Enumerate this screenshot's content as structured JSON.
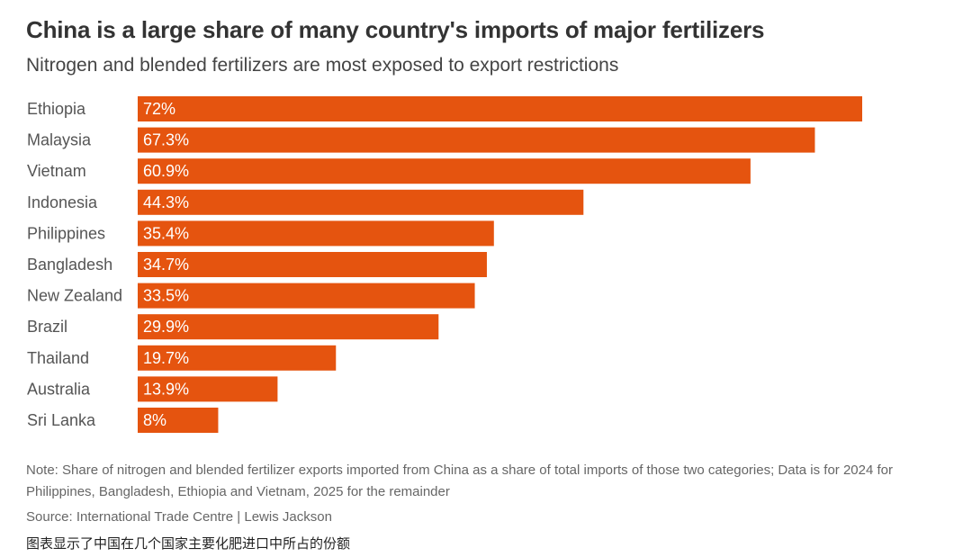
{
  "chart_data": {
    "type": "bar",
    "orientation": "horizontal",
    "title": "China is a large share of many country's imports of major fertilizers",
    "subtitle": "Nitrogen and blended fertilizers are most exposed to export restrictions",
    "categories": [
      "Ethiopia",
      "Malaysia",
      "Vietnam",
      "Indonesia",
      "Philippines",
      "Bangladesh",
      "New Zealand",
      "Brazil",
      "Thailand",
      "Australia",
      "Sri Lanka"
    ],
    "values": [
      72,
      67.3,
      60.9,
      44.3,
      35.4,
      34.7,
      33.5,
      29.9,
      19.7,
      13.9,
      8
    ],
    "data_labels": [
      "72%",
      "67.3%",
      "60.9%",
      "44.3%",
      "35.4%",
      "34.7%",
      "33.5%",
      "29.9%",
      "19.7%",
      "13.9%",
      "8%"
    ],
    "unit": "%",
    "xlim": [
      0,
      72
    ],
    "grid": false,
    "bar_color": "#e5540f",
    "label_color": "#ffffff"
  },
  "footer": {
    "note": "Note: Share of nitrogen and blended fertilizer exports imported from China as a share of total imports of those two categories; Data is for 2024 for Philippines, Bangladesh, Ethiopia and Vietnam, 2025 for the remainder",
    "source": "Source: International Trade Centre | Lewis Jackson",
    "caption": "图表显示了中国在几个国家主要化肥进口中所占的份额"
  }
}
